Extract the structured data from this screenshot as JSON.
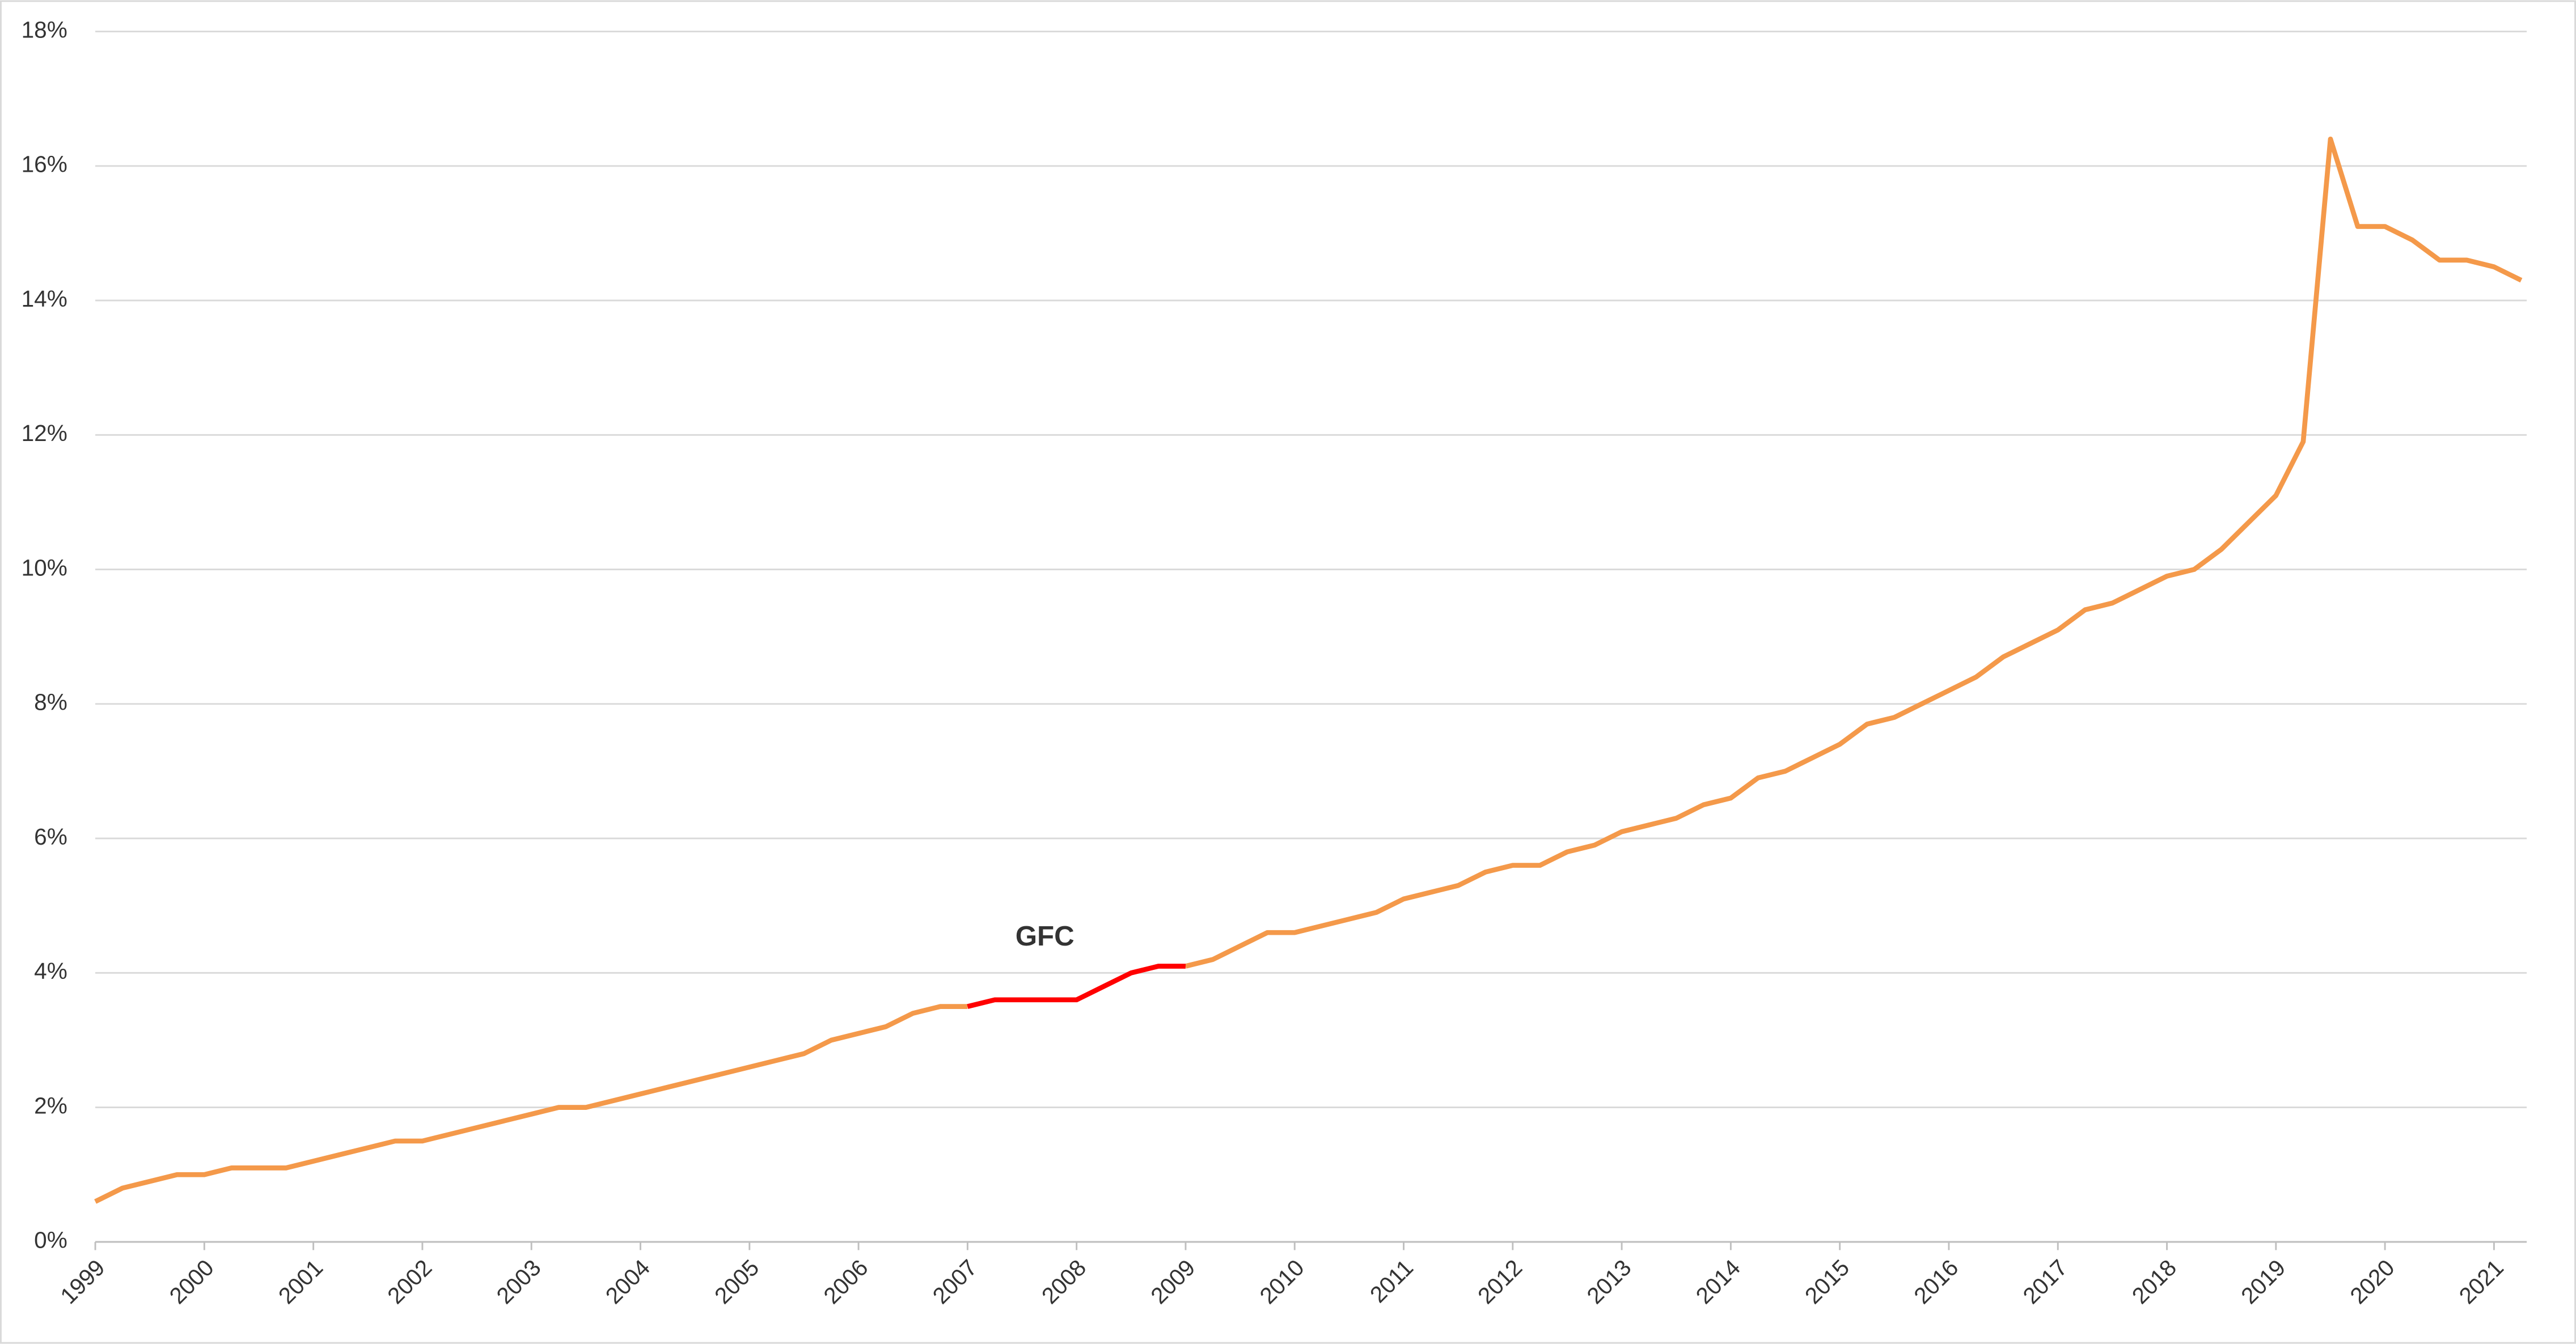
{
  "chart_data": {
    "type": "line",
    "x": [
      1999,
      1999.25,
      1999.5,
      1999.75,
      2000,
      2000.25,
      2000.5,
      2000.75,
      2001,
      2001.25,
      2001.5,
      2001.75,
      2002,
      2002.25,
      2002.5,
      2002.75,
      2003,
      2003.25,
      2003.5,
      2003.75,
      2004,
      2004.25,
      2004.5,
      2004.75,
      2005,
      2005.25,
      2005.5,
      2005.75,
      2006,
      2006.25,
      2006.5,
      2006.75,
      2007,
      2007.25,
      2007.5,
      2007.75,
      2008,
      2008.25,
      2008.5,
      2008.75,
      2009,
      2009.25,
      2009.5,
      2009.75,
      2010,
      2010.25,
      2010.5,
      2010.75,
      2011,
      2011.25,
      2011.5,
      2011.75,
      2012,
      2012.25,
      2012.5,
      2012.75,
      2013,
      2013.25,
      2013.5,
      2013.75,
      2014,
      2014.25,
      2014.5,
      2014.75,
      2015,
      2015.25,
      2015.5,
      2015.75,
      2016,
      2016.25,
      2016.5,
      2016.75,
      2017,
      2017.25,
      2017.5,
      2017.75,
      2018,
      2018.25,
      2018.5,
      2018.75,
      2019,
      2019.25,
      2019.5,
      2019.75,
      2020,
      2020.25,
      2020.5,
      2020.75,
      2021,
      2021.25
    ],
    "series": [
      {
        "color": "#f4994a",
        "values": [
          0.6,
          0.8,
          0.9,
          1.0,
          1.0,
          1.1,
          1.1,
          1.1,
          1.2,
          1.3,
          1.4,
          1.5,
          1.5,
          1.6,
          1.7,
          1.8,
          1.9,
          2.0,
          2.0,
          2.1,
          2.2,
          2.3,
          2.4,
          2.5,
          2.6,
          2.7,
          2.8,
          3.0,
          3.1,
          3.2,
          3.4,
          3.5,
          3.5,
          null,
          null,
          null,
          null,
          null,
          null,
          null,
          4.1,
          4.2,
          4.4,
          4.6,
          4.6,
          4.7,
          4.8,
          4.9,
          5.1,
          5.2,
          5.3,
          5.5,
          5.6,
          5.6,
          5.8,
          5.9,
          6.1,
          6.2,
          6.3,
          6.5,
          6.6,
          6.9,
          7.0,
          7.2,
          7.4,
          7.7,
          7.8,
          8.0,
          8.2,
          8.4,
          8.7,
          8.9,
          9.1,
          9.4,
          9.5,
          9.7,
          9.9,
          10.0,
          10.3,
          10.7,
          11.1,
          11.9,
          16.4,
          15.1,
          15.1,
          14.9,
          14.6,
          14.6,
          14.5,
          14.3
        ]
      },
      {
        "color": "#ff0000",
        "values": [
          null,
          null,
          null,
          null,
          null,
          null,
          null,
          null,
          null,
          null,
          null,
          null,
          null,
          null,
          null,
          null,
          null,
          null,
          null,
          null,
          null,
          null,
          null,
          null,
          null,
          null,
          null,
          null,
          null,
          null,
          null,
          null,
          3.5,
          3.6,
          3.6,
          3.6,
          3.6,
          3.8,
          4.0,
          4.1,
          4.1,
          null,
          null,
          null,
          null,
          null,
          null,
          null,
          null,
          null,
          null,
          null,
          null,
          null,
          null,
          null,
          null,
          null,
          null,
          null,
          null,
          null,
          null,
          null,
          null,
          null,
          null,
          null,
          null,
          null,
          null,
          null,
          null,
          null,
          null,
          null,
          null,
          null,
          null,
          null,
          null,
          null,
          null,
          null,
          null,
          null,
          null,
          null,
          null,
          null
        ]
      }
    ],
    "annotations": [
      {
        "text": "GFC",
        "color": "#ff0000"
      }
    ],
    "xlim": [
      1999,
      2021.3
    ],
    "xticks": [
      1999,
      2000,
      2001,
      2002,
      2003,
      2004,
      2005,
      2006,
      2007,
      2008,
      2009,
      2010,
      2011,
      2012,
      2013,
      2014,
      2015,
      2016,
      2017,
      2018,
      2019,
      2020,
      2021
    ],
    "ylim": [
      0,
      18
    ],
    "yticks": [
      {
        "value": 0,
        "label": "0%"
      },
      {
        "value": 2,
        "label": "2%"
      },
      {
        "value": 4,
        "label": "4%"
      },
      {
        "value": 6,
        "label": "6%"
      },
      {
        "value": 8,
        "label": "8%"
      },
      {
        "value": 10,
        "label": "10%"
      },
      {
        "value": 12,
        "label": "12%"
      },
      {
        "value": 14,
        "label": "14%"
      },
      {
        "value": 16,
        "label": "16%"
      },
      {
        "value": 18,
        "label": "18%"
      }
    ],
    "grid": true
  }
}
